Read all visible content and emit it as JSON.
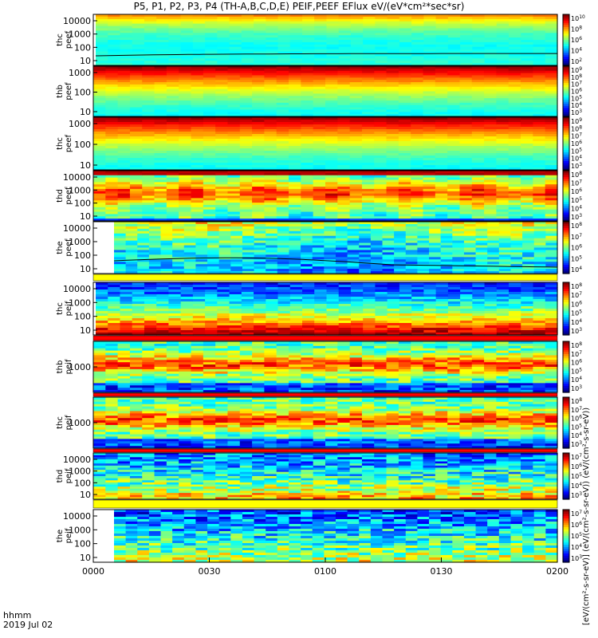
{
  "title": "P5, P1, P2, P3, P4 (TH-A,B,C,D,E) PEIF,PEEF EFlux eV/(eV*cm²*sec*sr)",
  "footer": {
    "line1": "hhmm",
    "line2": "2019 Jul 02"
  },
  "unit_label": "[eV/(cm²-s-sr-eV)] (eV/(cm²-s-sr-eV)) (eV/(cm²-s-sr-eV))",
  "chart_data": {
    "type": "heatmap",
    "x_ticks": [
      "0000",
      "0030",
      "0100",
      "0130",
      "0200"
    ],
    "panels": [
      {
        "ylabel": [
          "thc",
          "peef"
        ],
        "yticks": [
          "10000",
          "1000",
          "100",
          "10"
        ],
        "cbar_ticks": [
          "10^10",
          "10^8",
          "10^6",
          "10^4",
          "10^2"
        ],
        "pattern": "electron",
        "gap": true,
        "line": "high"
      },
      {
        "ylabel": [
          "thb",
          "peef"
        ],
        "yticks": [
          "1000",
          "100",
          "10"
        ],
        "cbar_ticks": [
          "10^9",
          "10^8",
          "10^7",
          "10^6",
          "10^5",
          "10^4",
          "10^3"
        ],
        "pattern": "electron_dense",
        "gap": false
      },
      {
        "ylabel": [
          "thc",
          "peef"
        ],
        "yticks": [
          "1000",
          "100",
          "10"
        ],
        "cbar_ticks": [
          "10^9",
          "10^8",
          "10^7",
          "10^6",
          "10^5",
          "10^4",
          "10^3"
        ],
        "pattern": "electron_dense",
        "gap": false
      },
      {
        "ylabel": [
          "thd",
          "peef"
        ],
        "yticks": [
          "10000",
          "1000",
          "100",
          "10"
        ],
        "cbar_ticks": [
          "10^8",
          "10^7",
          "10^6",
          "10^5",
          "10^4",
          "10^3"
        ],
        "pattern": "thd_electron",
        "gap": false
      },
      {
        "ylabel": [
          "the",
          "peef"
        ],
        "yticks": [
          "10000",
          "1000",
          "100",
          "10"
        ],
        "cbar_ticks": [
          "10^8",
          "10^7",
          "10^6",
          "10^5",
          "10^4"
        ],
        "pattern": "the_electron",
        "gap": true,
        "line": "low"
      },
      {
        "ylabel": [
          "thc",
          "peif"
        ],
        "yticks": [
          "10000",
          "1000",
          "100",
          "10"
        ],
        "cbar_ticks": [
          "10^8",
          "10^7",
          "10^6",
          "10^5",
          "10^4",
          "10^3"
        ],
        "pattern": "ion",
        "gap": true
      },
      {
        "ylabel": [
          "thb",
          "peif"
        ],
        "yticks": [
          "1000"
        ],
        "cbar_ticks": [
          "10^8",
          "10^7",
          "10^6",
          "10^5",
          "10^4",
          "10^3"
        ],
        "pattern": "ion_band",
        "gap": false
      },
      {
        "ylabel": [
          "thc",
          "peif"
        ],
        "yticks": [
          "1000"
        ],
        "cbar_ticks": [
          "10^8",
          "10^7",
          "10^6",
          "10^5",
          "10^4",
          "10^3"
        ],
        "pattern": "ion_band",
        "gap": false
      },
      {
        "ylabel": [
          "thd",
          "peif"
        ],
        "yticks": [
          "10000",
          "1000",
          "100",
          "10"
        ],
        "cbar_ticks": [
          "10^7",
          "10^6",
          "10^5",
          "10^4",
          "10^3"
        ],
        "pattern": "thd_ion",
        "gap": false
      },
      {
        "ylabel": [
          "the",
          "peif"
        ],
        "yticks": [
          "10000",
          "1000",
          "100",
          "10"
        ],
        "cbar_ticks": [
          "10^7",
          "10^6",
          "10^5",
          "10^4",
          "10^3"
        ],
        "pattern": "the_ion",
        "gap": true
      }
    ]
  }
}
